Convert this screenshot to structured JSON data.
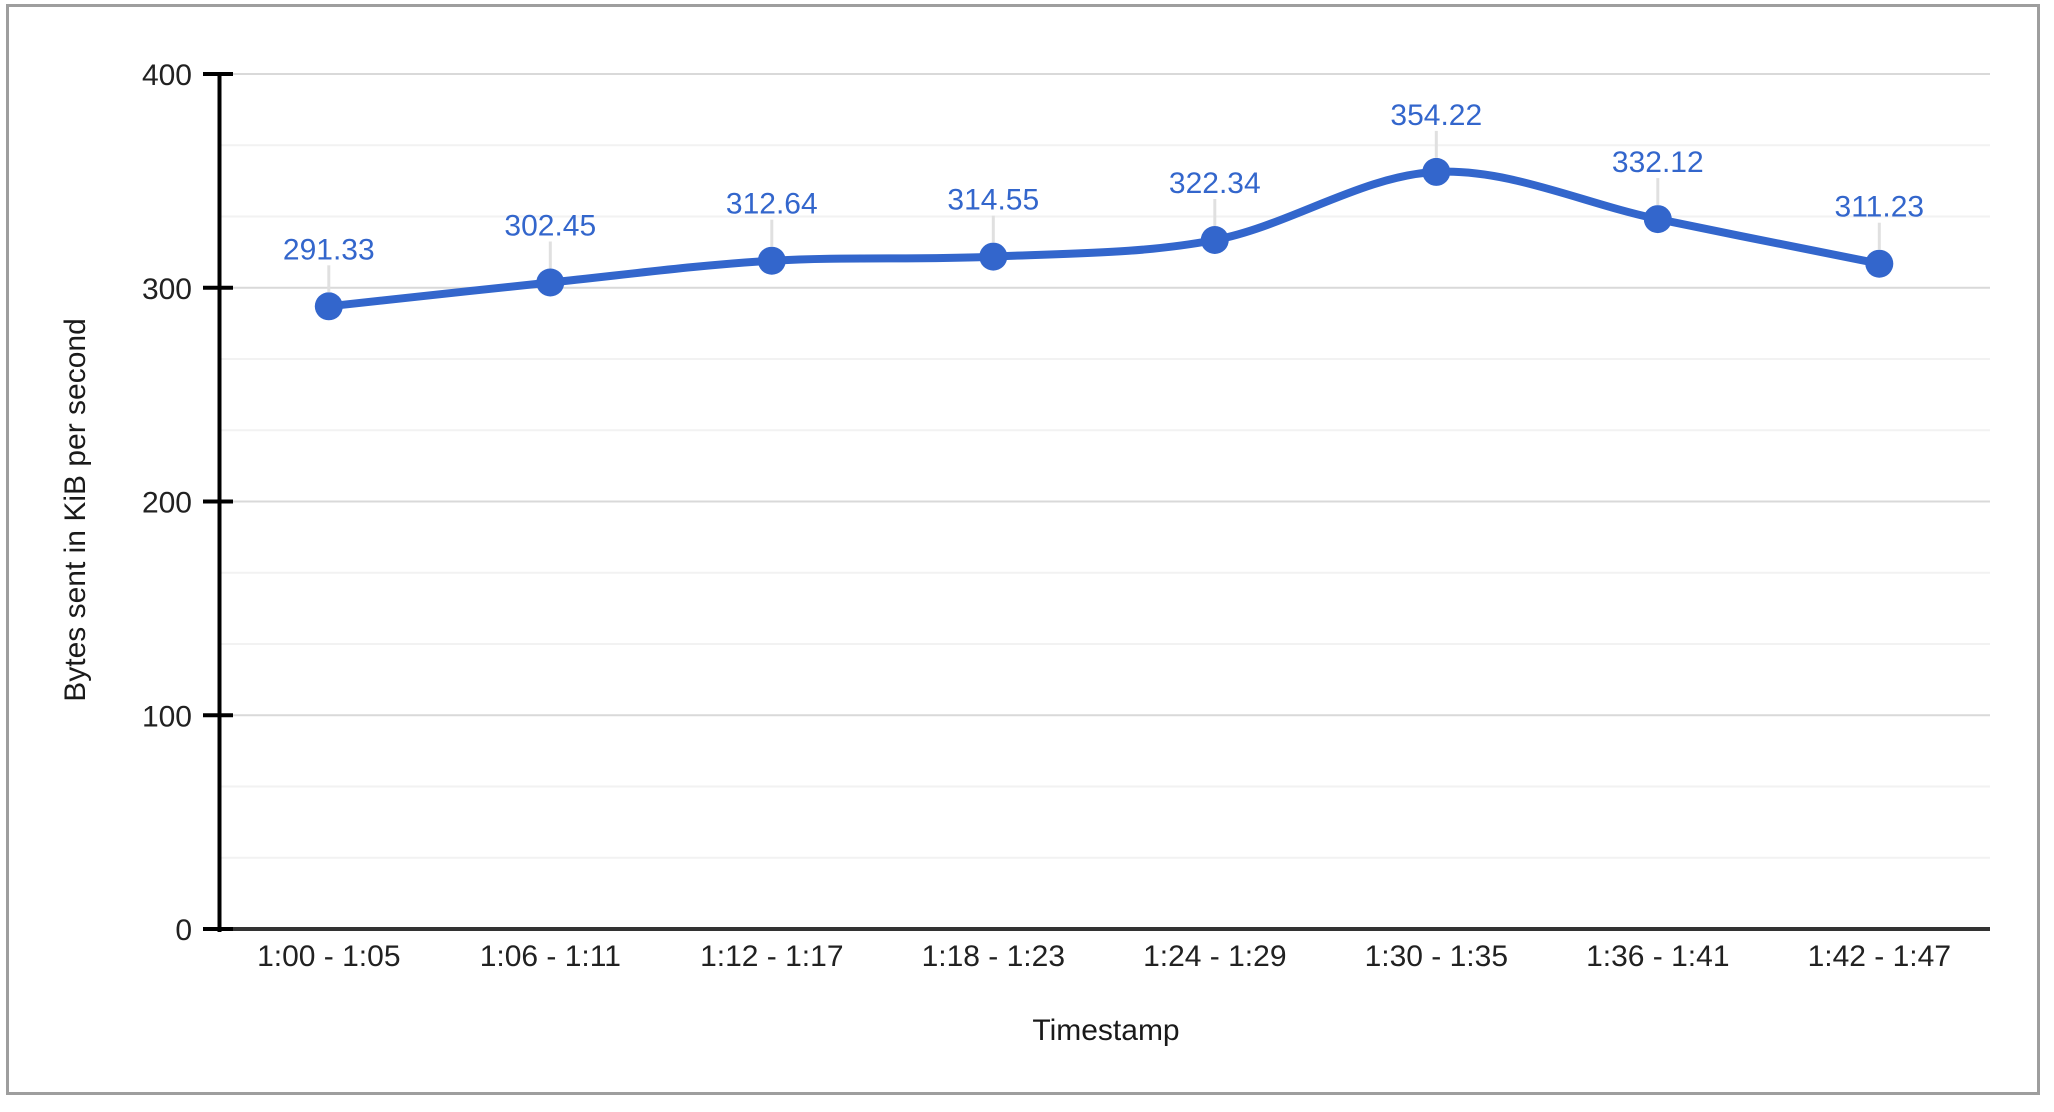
{
  "chart_data": {
    "type": "line",
    "curve": "smooth",
    "legend": "none",
    "categories": [
      "1:00 - 1:05",
      "1:06 - 1:11",
      "1:12 - 1:17",
      "1:18 - 1:23",
      "1:24 - 1:29",
      "1:30 - 1:35",
      "1:36 - 1:41",
      "1:42 - 1:47"
    ],
    "values": [
      291.33,
      302.45,
      312.64,
      314.55,
      322.34,
      354.22,
      332.12,
      311.23
    ],
    "point_labels": [
      "291.33",
      "302.45",
      "312.64",
      "314.55",
      "322.34",
      "354.22",
      "332.12",
      "311.23"
    ],
    "xlabel": "Timestamp",
    "ylabel": "Bytes sent in KiB per second",
    "y_ticks": [
      0,
      100,
      200,
      300,
      400
    ],
    "y_tick_labels": [
      "0",
      "100",
      "200",
      "300",
      "400"
    ],
    "ylim": [
      0,
      400
    ],
    "minor_gridlines_per_interval": 2,
    "colors": {
      "series": "#3366cc",
      "data_label": "#3366cc",
      "label_stem": "#e0e0e0",
      "gridline_major": "#d9d9d9",
      "gridline_minor": "#f2f2f2",
      "axis": "#000000",
      "baseline": "#333333",
      "text": "#212121",
      "frame_border": "#9e9e9e",
      "background": "#ffffff"
    }
  }
}
